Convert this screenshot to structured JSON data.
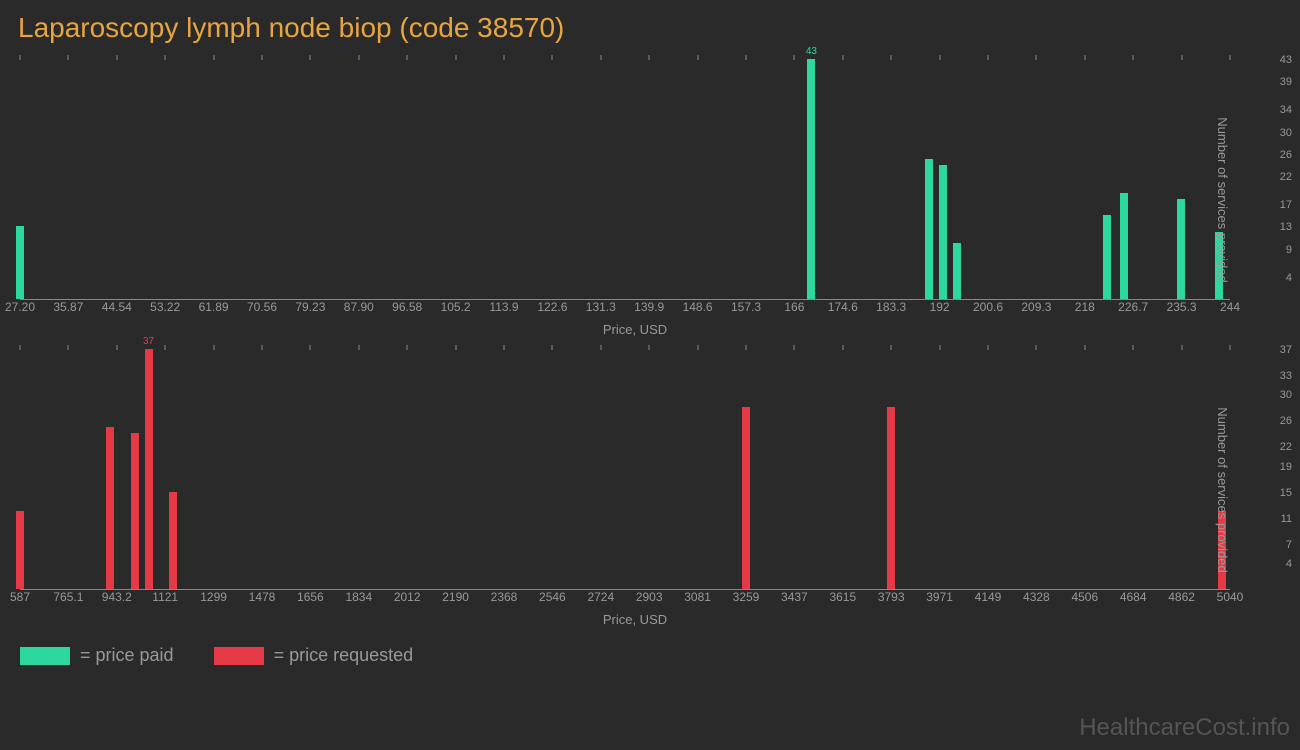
{
  "title": "Laparoscopy lymph node biop (code 38570)",
  "background_color": "#2a2a2a",
  "title_color": "#e8a43e",
  "title_fontsize": 28,
  "axis_text_color": "#999999",
  "axis_line_color": "#888888",
  "watermark": "HealthcareCost.info",
  "watermark_color": "#555555",
  "legend": [
    {
      "color": "#2cd8a0",
      "label": "= price paid"
    },
    {
      "color": "#e63946",
      "label": "= price requested"
    }
  ],
  "chart_top": {
    "type": "bar",
    "bar_color": "#2cd8a0",
    "bar_label_color": "#2cd8a0",
    "xlabel": "Price, USD",
    "ylabel": "Number of services provided",
    "label_fontsize": 13,
    "tick_fontsize": 12,
    "x_min": 27.2,
    "x_max": 244,
    "y_min": 0,
    "y_max": 43,
    "x_ticks": [
      "27.20",
      "35.87",
      "44.54",
      "53.22",
      "61.89",
      "70.56",
      "79.23",
      "87.90",
      "96.58",
      "105.2",
      "113.9",
      "122.6",
      "131.3",
      "139.9",
      "148.6",
      "157.3",
      "166",
      "174.6",
      "183.3",
      "192",
      "200.6",
      "209.3",
      "218",
      "226.7",
      "235.3",
      "244"
    ],
    "y_ticks": [
      4,
      9,
      13,
      17,
      22,
      26,
      30,
      34,
      39,
      43
    ],
    "bars": [
      {
        "x": 27.2,
        "y": 13
      },
      {
        "x": 169,
        "y": 43,
        "label": "43"
      },
      {
        "x": 190,
        "y": 25
      },
      {
        "x": 192.5,
        "y": 24
      },
      {
        "x": 195,
        "y": 10
      },
      {
        "x": 222,
        "y": 15
      },
      {
        "x": 225,
        "y": 19
      },
      {
        "x": 235.3,
        "y": 18
      },
      {
        "x": 242,
        "y": 12
      }
    ]
  },
  "chart_bottom": {
    "type": "bar",
    "bar_color": "#e63946",
    "bar_label_color": "#e63946",
    "xlabel": "Price, USD",
    "ylabel": "Number of services provided",
    "label_fontsize": 13,
    "tick_fontsize": 12,
    "x_min": 587,
    "x_max": 5040,
    "y_min": 0,
    "y_max": 37,
    "x_ticks": [
      "587",
      "765.1",
      "943.2",
      "1121",
      "1299",
      "1478",
      "1656",
      "1834",
      "2012",
      "2190",
      "2368",
      "2546",
      "2724",
      "2903",
      "3081",
      "3259",
      "3437",
      "3615",
      "3793",
      "3971",
      "4149",
      "4328",
      "4506",
      "4684",
      "4862",
      "5040"
    ],
    "y_ticks": [
      4,
      7,
      11,
      15,
      19,
      22,
      26,
      30,
      33,
      37
    ],
    "bars": [
      {
        "x": 587,
        "y": 12
      },
      {
        "x": 920,
        "y": 25
      },
      {
        "x": 1010,
        "y": 24
      },
      {
        "x": 1060,
        "y": 37,
        "label": "37"
      },
      {
        "x": 1150,
        "y": 15
      },
      {
        "x": 3259,
        "y": 28
      },
      {
        "x": 3793,
        "y": 28
      },
      {
        "x": 5010,
        "y": 12
      }
    ]
  }
}
